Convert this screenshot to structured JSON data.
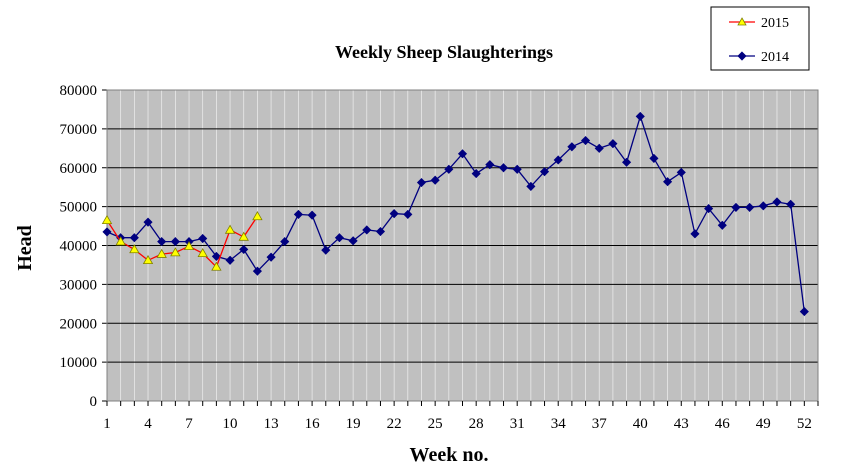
{
  "colors": {
    "plot_background": "#c0c0c0",
    "series_2015": "#ff0000",
    "series_2015_marker": "#ffff00",
    "series_2014": "#000080",
    "grid": "#000000"
  },
  "chart_data": {
    "type": "line",
    "title": "Weekly Sheep Slaughterings",
    "xlabel": "Week no.",
    "ylabel": "Head",
    "xlim": [
      1,
      53
    ],
    "ylim": [
      0,
      80000
    ],
    "x_ticks": [
      "1",
      "4",
      "7",
      "10",
      "13",
      "16",
      "19",
      "22",
      "25",
      "28",
      "31",
      "34",
      "37",
      "40",
      "43",
      "46",
      "49",
      "52"
    ],
    "y_ticks": [
      "0",
      "10000",
      "20000",
      "30000",
      "40000",
      "50000",
      "60000",
      "70000",
      "80000"
    ],
    "grid": "horizontal",
    "legend_position": "top-right",
    "series": [
      {
        "name": "2015",
        "marker": "triangle",
        "x": [
          1,
          2,
          3,
          4,
          5,
          6,
          7,
          8,
          9,
          10,
          11,
          12
        ],
        "values": [
          46500,
          41000,
          39000,
          36200,
          37800,
          38200,
          39800,
          38000,
          34500,
          44000,
          42200,
          47500
        ]
      },
      {
        "name": "2014",
        "marker": "diamond",
        "x": [
          1,
          2,
          3,
          4,
          5,
          6,
          7,
          8,
          9,
          10,
          11,
          12,
          13,
          14,
          15,
          16,
          17,
          18,
          19,
          20,
          21,
          22,
          23,
          24,
          25,
          26,
          27,
          28,
          29,
          30,
          31,
          32,
          33,
          34,
          35,
          36,
          37,
          38,
          39,
          40,
          41,
          42,
          43,
          44,
          45,
          46,
          47,
          48,
          49,
          50,
          51,
          52
        ],
        "values": [
          43500,
          42000,
          42000,
          46000,
          41000,
          41000,
          41000,
          41800,
          37200,
          36200,
          39000,
          33400,
          37000,
          41000,
          48000,
          47800,
          38800,
          42000,
          41200,
          44000,
          43600,
          48200,
          48000,
          56200,
          56800,
          59600,
          63600,
          58500,
          60800,
          60000,
          59600,
          55200,
          59000,
          62000,
          65400,
          67000,
          65000,
          66200,
          61400,
          73200,
          62400,
          56400,
          58800,
          43000,
          49500,
          45200,
          49800,
          49800,
          50200,
          51200,
          50600,
          23000
        ]
      }
    ]
  }
}
